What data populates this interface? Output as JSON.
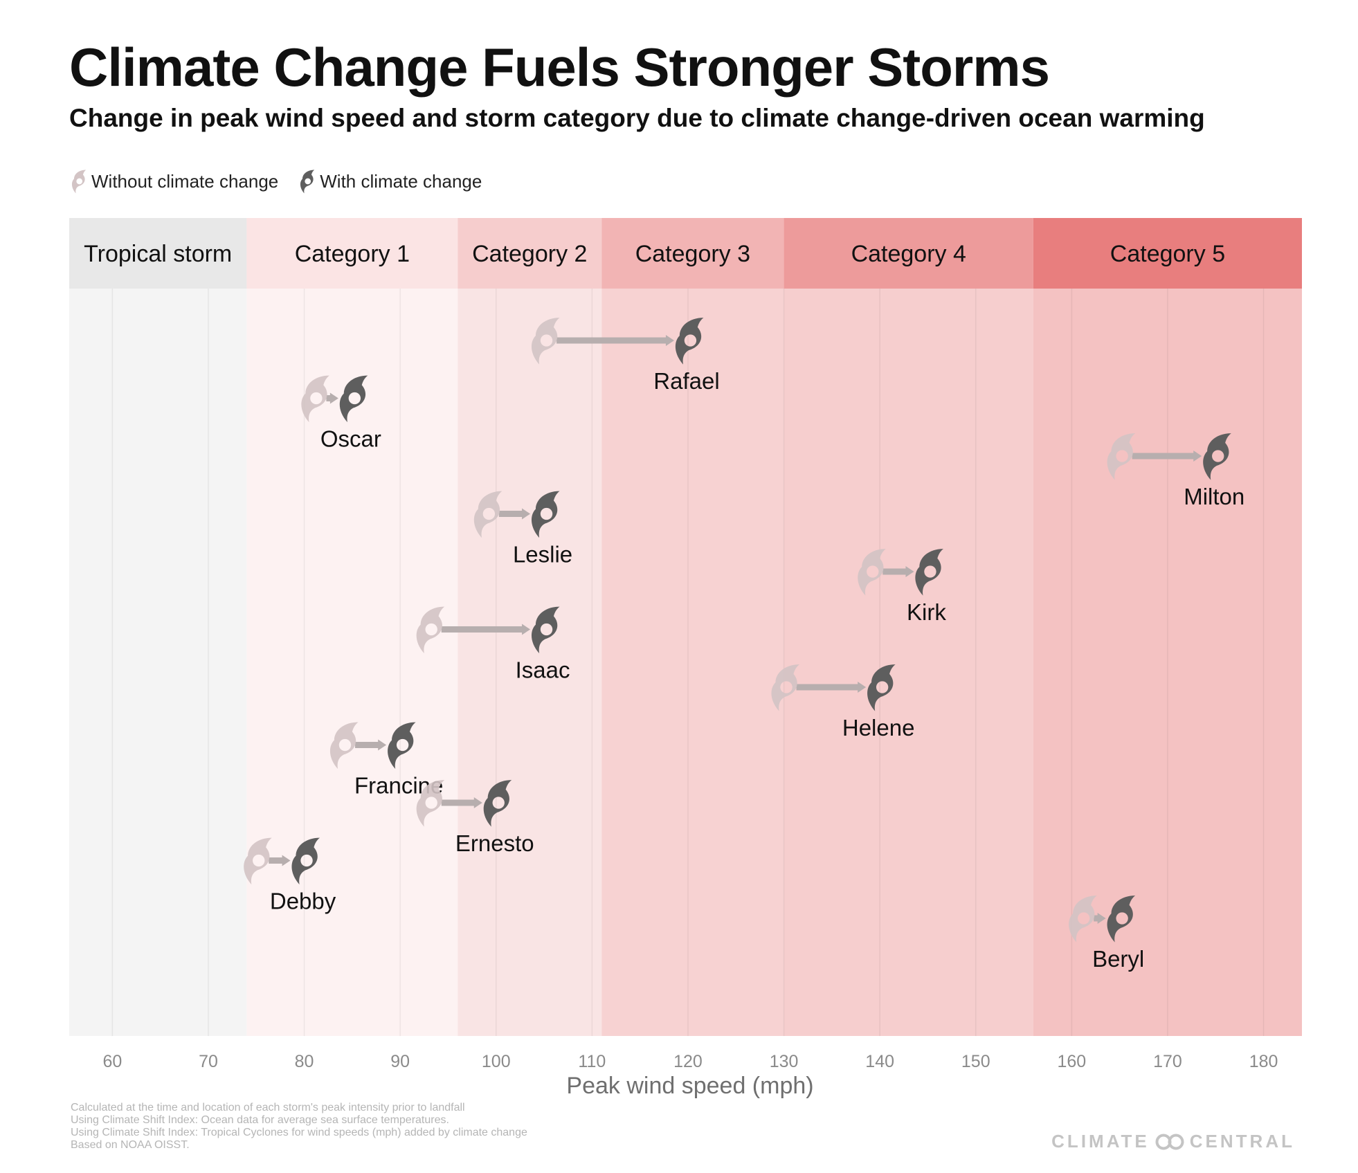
{
  "title": "Climate Change Fuels Stronger Storms",
  "subtitle": "Change in peak wind speed and storm category due to climate change-driven ocean warming",
  "legend": {
    "without": "Without climate change",
    "with": "With climate change"
  },
  "colors": {
    "without_icon": "#d3c4c5",
    "with_icon": "#5e5e5e",
    "arrow": "#b7aeae"
  },
  "chart_data": {
    "type": "scatter",
    "xlabel": "Peak wind speed (mph)",
    "xlim": [
      55.5,
      184
    ],
    "ticks": [
      60,
      70,
      80,
      90,
      100,
      110,
      120,
      130,
      140,
      150,
      160,
      170,
      180
    ],
    "categories": [
      {
        "name": "Tropical storm",
        "from": 55.5,
        "to": 74,
        "header_color": "#e8e8e8",
        "band_color": "#f4f4f4"
      },
      {
        "name": "Category 1",
        "from": 74,
        "to": 96,
        "header_color": "#fbe4e4",
        "band_color": "#fdf2f2"
      },
      {
        "name": "Category 2",
        "from": 96,
        "to": 111,
        "header_color": "#f6cdcd",
        "band_color": "#f9e4e4"
      },
      {
        "name": "Category 3",
        "from": 111,
        "to": 130,
        "header_color": "#f2b4b4",
        "band_color": "#f7d2d2"
      },
      {
        "name": "Category 4",
        "from": 130,
        "to": 156,
        "header_color": "#ed9b9b",
        "band_color": "#f6cece"
      },
      {
        "name": "Category 5",
        "from": 156,
        "to": 184,
        "header_color": "#e87e7e",
        "band_color": "#f4c2c2"
      }
    ],
    "series": [
      {
        "name": "Rafael",
        "without": 105,
        "with": 120
      },
      {
        "name": "Oscar",
        "without": 81,
        "with": 85
      },
      {
        "name": "Milton",
        "without": 165,
        "with": 175
      },
      {
        "name": "Leslie",
        "without": 99,
        "with": 105
      },
      {
        "name": "Kirk",
        "without": 139,
        "with": 145
      },
      {
        "name": "Isaac",
        "without": 93,
        "with": 105
      },
      {
        "name": "Helene",
        "without": 130,
        "with": 140
      },
      {
        "name": "Francine",
        "without": 84,
        "with": 90
      },
      {
        "name": "Ernesto",
        "without": 93,
        "with": 100
      },
      {
        "name": "Debby",
        "without": 75,
        "with": 80
      },
      {
        "name": "Beryl",
        "without": 161,
        "with": 165
      }
    ]
  },
  "footnotes": [
    "Calculated at the time and location of each storm's peak intensity prior to landfall",
    "Using Climate Shift Index: Ocean data for average sea surface temperatures.",
    "Using Climate Shift Index: Tropical Cyclones for wind speeds (mph) added by climate change",
    "Based on NOAA OISST."
  ],
  "brand": {
    "left": "CLIMATE",
    "right": "CENTRAL"
  }
}
